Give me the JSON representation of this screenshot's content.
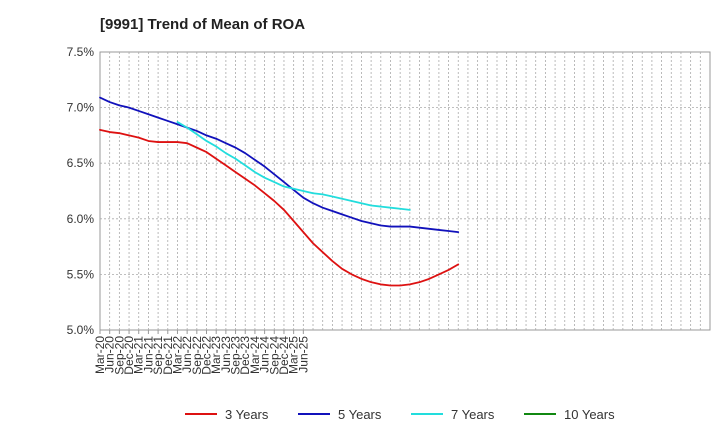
{
  "chart_data": {
    "type": "line",
    "title": "[9991]  Trend of Mean of ROA",
    "xlabel": "",
    "ylabel": "",
    "ylim": [
      5.0,
      7.5
    ],
    "yticks": [
      "5.0%",
      "5.5%",
      "6.0%",
      "6.5%",
      "7.0%",
      "7.5%"
    ],
    "ytick_values": [
      5.0,
      5.5,
      6.0,
      6.5,
      7.0,
      7.5
    ],
    "x_tick_labels": [
      "Mar-20",
      "Jun-20",
      "Sep-20",
      "Dec-20",
      "Mar-21",
      "Jun-21",
      "Sep-21",
      "Dec-21",
      "Mar-22",
      "Jun-22",
      "Sep-22",
      "Dec-22",
      "Mar-23",
      "Jun-23",
      "Sep-23",
      "Dec-23",
      "Mar-24",
      "Jun-24",
      "Sep-24",
      "Dec-24",
      "Mar-25",
      "Jun-25"
    ],
    "grid": true,
    "legend_position": "bottom",
    "series": [
      {
        "name": "3 Years",
        "color": "#dd1111",
        "start_index": 0,
        "values": [
          6.8,
          6.78,
          6.77,
          6.75,
          6.73,
          6.7,
          6.69,
          6.69,
          6.69,
          6.68,
          6.64,
          6.6,
          6.54,
          6.48,
          6.42,
          6.36,
          6.3,
          6.23,
          6.16,
          6.08,
          5.98,
          5.88,
          5.78,
          5.7,
          5.62,
          5.55,
          5.5,
          5.46,
          5.43,
          5.41,
          5.4,
          5.4,
          5.41,
          5.43,
          5.46,
          5.5,
          5.54,
          5.59
        ]
      },
      {
        "name": "5 Years",
        "color": "#1111bb",
        "start_index": 0,
        "values": [
          7.09,
          7.05,
          7.02,
          7.0,
          6.97,
          6.94,
          6.91,
          6.88,
          6.85,
          6.82,
          6.79,
          6.75,
          6.72,
          6.68,
          6.64,
          6.59,
          6.53,
          6.47,
          6.4,
          6.33,
          6.26,
          6.19,
          6.14,
          6.1,
          6.07,
          6.04,
          6.01,
          5.98,
          5.96,
          5.94,
          5.93,
          5.93,
          5.93,
          5.92,
          5.91,
          5.9,
          5.89,
          5.88
        ]
      },
      {
        "name": "7 Years",
        "color": "#22dddd",
        "start_index": 8,
        "values": [
          6.87,
          6.82,
          6.76,
          6.7,
          6.65,
          6.59,
          6.54,
          6.48,
          6.42,
          6.37,
          6.33,
          6.29,
          6.27,
          6.25,
          6.23,
          6.22,
          6.2,
          6.18,
          6.16,
          6.14,
          6.12,
          6.11,
          6.1,
          6.09,
          6.08
        ]
      },
      {
        "name": "10 Years",
        "color": "#118811",
        "start_index": 0,
        "values": []
      }
    ]
  }
}
